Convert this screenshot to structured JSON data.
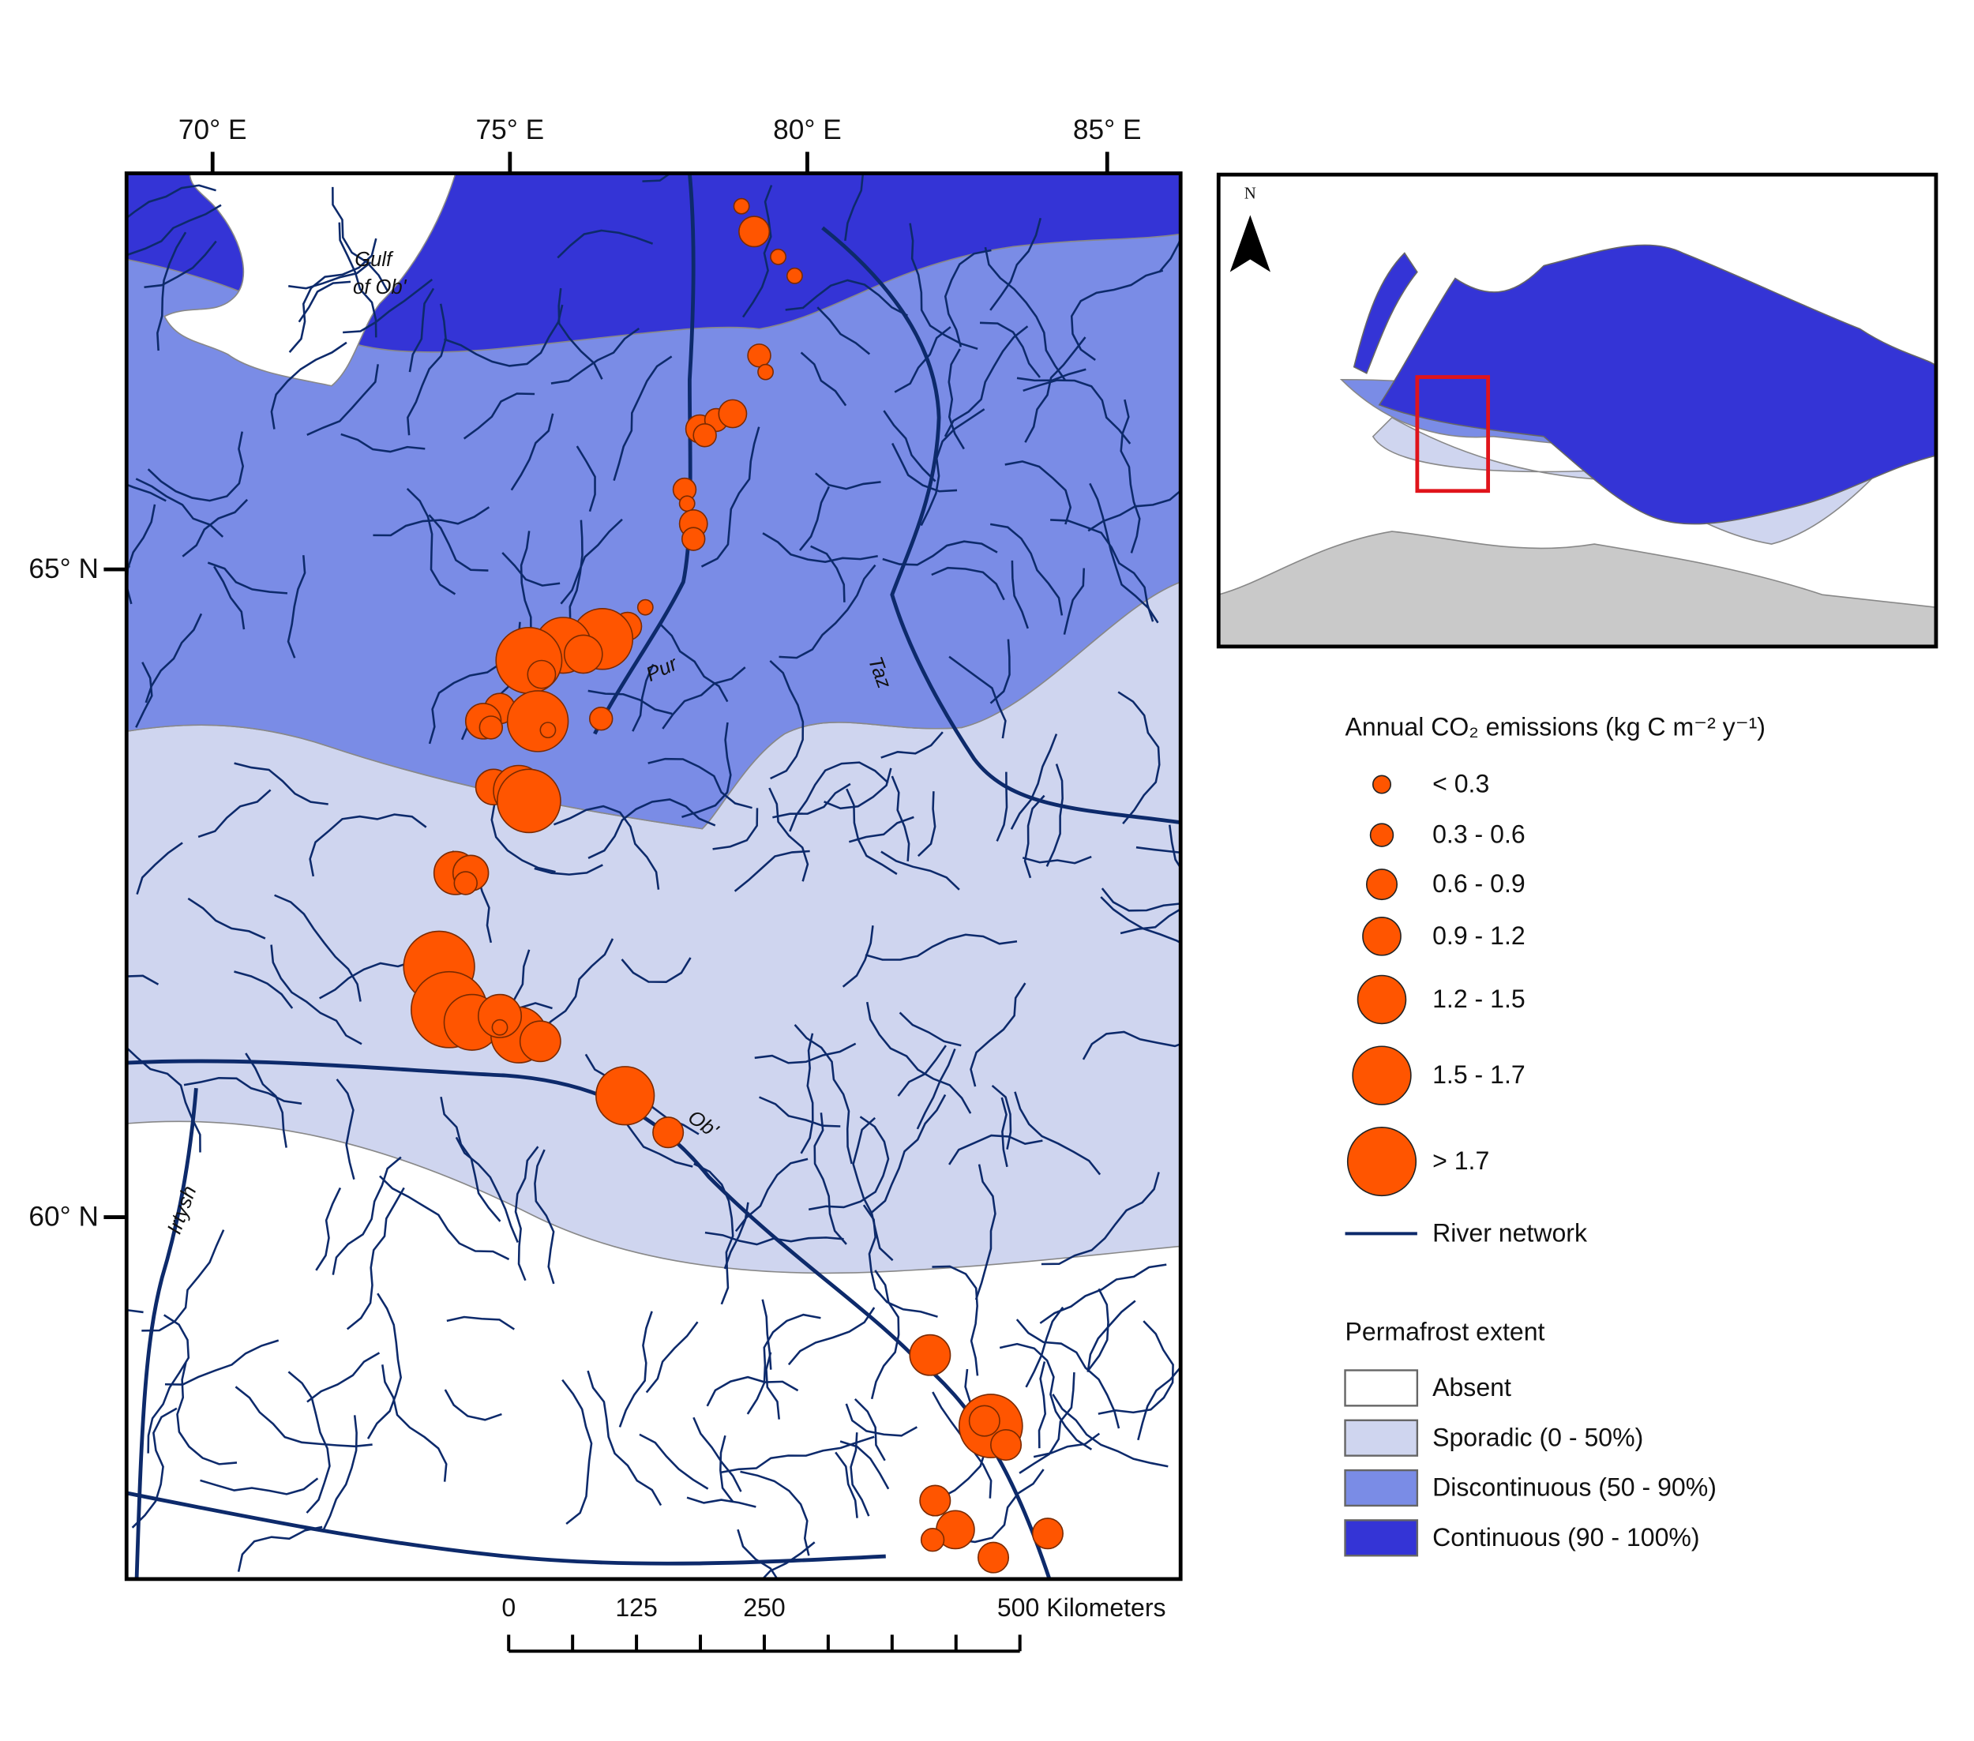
{
  "map": {
    "longitude_labels": [
      "70° E",
      "75° E",
      "80° E",
      "85° E"
    ],
    "latitude_labels": [
      "65° N",
      "60° N"
    ],
    "gulf_label": [
      "Gulf",
      "of Ob'"
    ],
    "river_labels": [
      "Pur",
      "Taz",
      "Ob'",
      "Irtysh"
    ],
    "emission_color": "#ff5500",
    "river_color": "#0d2a6b"
  },
  "inset": {
    "north": "N"
  },
  "legend": {
    "emissions_title": "Annual CO₂ emissions (kg C m⁻² y⁻¹)",
    "emission_classes": [
      "< 0.3",
      "0.3 - 0.6",
      "0.6 - 0.9",
      "0.9 - 1.2",
      "1.2 - 1.5",
      "1.5 - 1.7",
      "> 1.7"
    ],
    "river_network": "River network",
    "permafrost_title": "Permafrost extent",
    "permafrost_classes": [
      {
        "label": "Absent",
        "color": "#ffffff"
      },
      {
        "label": "Sporadic (0 - 50%)",
        "color": "#cfd5ef"
      },
      {
        "label": "Discontinuous (50 - 90%)",
        "color": "#7a8ce6"
      },
      {
        "label": "Continuous (90 - 100%)",
        "color": "#3434d6"
      }
    ]
  },
  "scale_bar": {
    "labels": [
      "0",
      "125",
      "250",
      "500 Kilometers"
    ]
  }
}
